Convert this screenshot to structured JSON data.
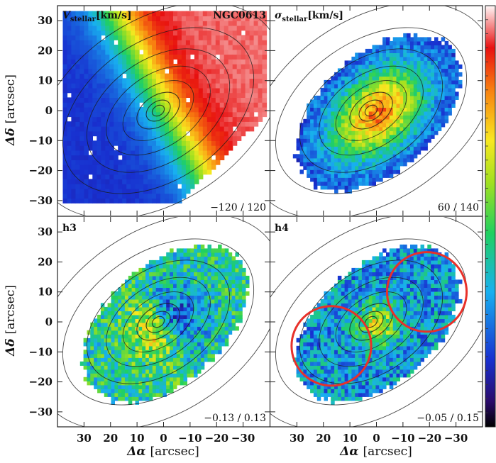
{
  "chart_data": [
    {
      "type": "heatmap",
      "panel": "top-left",
      "label_main": "V",
      "label_sub": "stellar",
      "unit": "[km/s]",
      "galaxy_label": "NGC0613",
      "range_text": "−120 / 120",
      "vmin": -120,
      "vmax": 120,
      "xlim": [
        40,
        -40
      ],
      "ylim": [
        -35,
        35
      ],
      "x_ticks": [
        30,
        20,
        10,
        0,
        -10,
        -20,
        -30
      ],
      "y_ticks": [
        30,
        20,
        10,
        0,
        -10,
        -20,
        -30
      ],
      "map_kind": "velocity"
    },
    {
      "type": "heatmap",
      "panel": "top-right",
      "label_main": "σ",
      "label_sub": "stellar",
      "unit": "[km/s]",
      "range_text": "60 / 140",
      "vmin": 60,
      "vmax": 140,
      "map_kind": "dispersion"
    },
    {
      "type": "heatmap",
      "panel": "bottom-left",
      "label_main": "h3",
      "range_text": "−0.13 / 0.13",
      "vmin": -0.13,
      "vmax": 0.13,
      "map_kind": "h3"
    },
    {
      "type": "heatmap",
      "panel": "bottom-right",
      "label_main": "h4",
      "range_text": "−0.05 / 0.15",
      "vmin": -0.05,
      "vmax": 0.15,
      "map_kind": "h4",
      "annotations": [
        {
          "shape": "circle",
          "center": [
            17,
            -8
          ],
          "radius": 15,
          "color": "#e8312a"
        },
        {
          "shape": "circle",
          "center": [
            -19,
            10
          ],
          "radius": 15,
          "color": "#e8312a"
        }
      ]
    }
  ],
  "axes": {
    "xlabel_main": "Δα",
    "xlabel_unit": "[arcsec]",
    "ylabel_main": "Δδ",
    "ylabel_unit": "[arcsec]",
    "tick_labels": [
      "30",
      "20",
      "10",
      "0",
      "−10",
      "−20",
      "−30"
    ]
  },
  "colormap": "rainbow (black-blue-cyan-green-yellow-orange-red-white)"
}
